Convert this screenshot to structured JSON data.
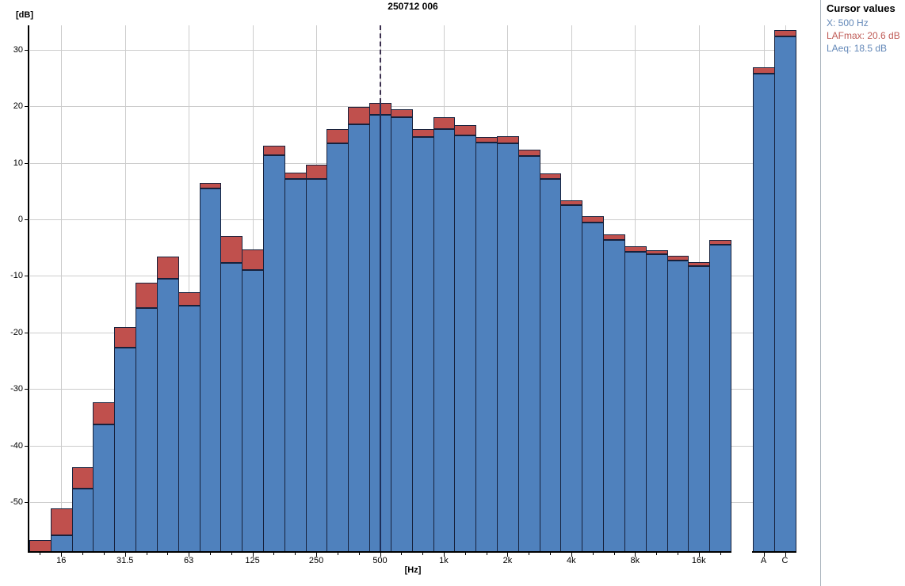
{
  "title": "250712 006",
  "y_axis_unit": "[dB]",
  "x_axis_unit": "[Hz]",
  "cursor_panel": {
    "title": "Cursor values",
    "x_line": "X: 500 Hz",
    "lafmax_line": "LAFmax: 20.6 dB",
    "laeq_line": "LAeq: 18.5 dB"
  },
  "colors": {
    "laeq_fill": "#4f81bd",
    "lafmax_fill": "#c0504d",
    "bar_outline": "#16213c",
    "grid": "#cccccc",
    "axis": "#000000",
    "panel_blue_text": "#6388b8",
    "panel_red_text": "#bf5a55",
    "panel_border": "#a9b3bd"
  },
  "chart_data": {
    "type": "bar",
    "subtype": "third-octave-spectrum",
    "title": "250712 006",
    "xlabel": "[Hz]",
    "ylabel": "[dB]",
    "ylim": [
      -58.8,
      34.3
    ],
    "yticks": [
      30,
      20,
      10,
      0,
      -10,
      -20,
      -30,
      -40,
      -50
    ],
    "grid": true,
    "legend": "none",
    "categories": [
      "12.5",
      "16",
      "20",
      "25",
      "31.5",
      "40",
      "50",
      "63",
      "80",
      "100",
      "125",
      "160",
      "200",
      "250",
      "315",
      "400",
      "500",
      "630",
      "800",
      "1k",
      "1.25k",
      "1.6k",
      "2k",
      "2.5k",
      "3.15k",
      "4k",
      "5k",
      "6.3k",
      "8k",
      "10k",
      "12.5k",
      "16k",
      "20k"
    ],
    "x_tick_labels": [
      "16",
      "31.5",
      "63",
      "125",
      "250",
      "500",
      "1k",
      "2k",
      "4k",
      "8k",
      "16k"
    ],
    "series": [
      {
        "name": "LAFmax",
        "color": "#c0504d",
        "values": [
          -56.7,
          -51.1,
          -43.8,
          -32.4,
          -19.0,
          -11.2,
          -6.6,
          -12.9,
          6.4,
          -2.9,
          -5.3,
          13.0,
          8.2,
          9.7,
          15.9,
          19.9,
          20.6,
          19.5,
          16.0,
          18.0,
          16.6,
          14.5,
          14.7,
          12.3,
          8.1,
          3.4,
          0.5,
          -2.6,
          -4.7,
          -5.4,
          -6.4,
          -7.5,
          -3.7
        ]
      },
      {
        "name": "LAeq",
        "color": "#4f81bd",
        "values": [
          -58.8,
          -55.9,
          -47.6,
          -36.3,
          -22.7,
          -15.7,
          -10.5,
          -15.2,
          5.5,
          -7.7,
          -8.9,
          11.4,
          7.2,
          7.1,
          13.4,
          16.8,
          18.5,
          18.0,
          14.5,
          16.0,
          14.9,
          13.6,
          13.5,
          11.2,
          7.2,
          2.5,
          -0.6,
          -3.6,
          -5.7,
          -6.1,
          -7.3,
          -8.3,
          -4.5
        ]
      }
    ],
    "totals": {
      "categories": [
        "A",
        "C"
      ],
      "LAFmax": [
        26.9,
        33.5
      ],
      "LAeq": [
        25.8,
        32.4
      ]
    },
    "cursor": {
      "category": "500",
      "x": "500 Hz",
      "LAFmax": 20.6,
      "LAeq": 18.5
    }
  }
}
